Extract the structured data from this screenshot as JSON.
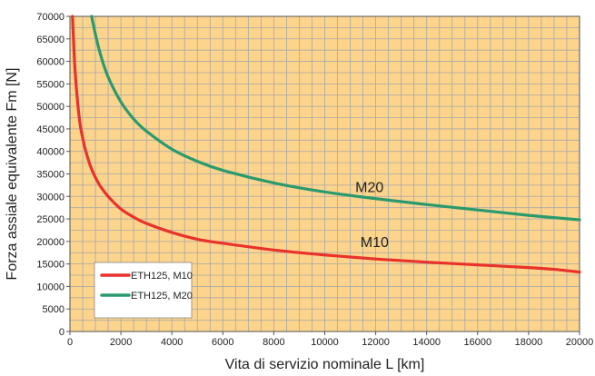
{
  "chart_data": {
    "type": "line",
    "title": "",
    "xlabel": "Vita di servizio nominale L [km]",
    "ylabel": "Forza assiale equivalente Fm [N]",
    "xlim": [
      0,
      20000
    ],
    "ylim": [
      0,
      70000
    ],
    "x_ticks": [
      0,
      2000,
      4000,
      6000,
      8000,
      10000,
      12000,
      14000,
      16000,
      18000,
      20000
    ],
    "y_ticks": [
      0,
      5000,
      10000,
      15000,
      20000,
      25000,
      30000,
      35000,
      40000,
      45000,
      50000,
      55000,
      60000,
      65000,
      70000
    ],
    "grid": true,
    "legend_position": "bottom-left",
    "series": [
      {
        "name": "ETH125, M10",
        "color": "#e8322b",
        "x": [
          100,
          150,
          200,
          300,
          400,
          500,
          600,
          800,
          1000,
          1200,
          1500,
          2000,
          2500,
          3000,
          4000,
          5000,
          6000,
          8000,
          10000,
          12000,
          14000,
          16000,
          18000,
          19000,
          20000
        ],
        "y": [
          70000,
          63500,
          58000,
          51000,
          46000,
          43000,
          40500,
          36800,
          34200,
          32200,
          30000,
          27200,
          25400,
          24000,
          22000,
          20500,
          19600,
          18100,
          17000,
          16100,
          15400,
          14800,
          14200,
          13800,
          13200
        ]
      },
      {
        "name": "ETH125, M20",
        "color": "#2a9a6e",
        "x": [
          850,
          1000,
          1200,
          1500,
          2000,
          2500,
          3000,
          4000,
          5000,
          6000,
          8000,
          10000,
          12000,
          14000,
          16000,
          18000,
          20000
        ],
        "y": [
          70000,
          66000,
          61500,
          56500,
          51000,
          47200,
          44500,
          40500,
          37800,
          35800,
          33000,
          31000,
          29500,
          28200,
          27000,
          25800,
          24800
        ]
      }
    ],
    "annotations": [
      {
        "text": "M20",
        "x": 11200,
        "y": 31000
      },
      {
        "text": "M10",
        "x": 11400,
        "y": 18800
      }
    ],
    "colors": {
      "plot_background": "#fcd48c",
      "grid": "#a8a8a8",
      "axis": "#555555"
    }
  }
}
